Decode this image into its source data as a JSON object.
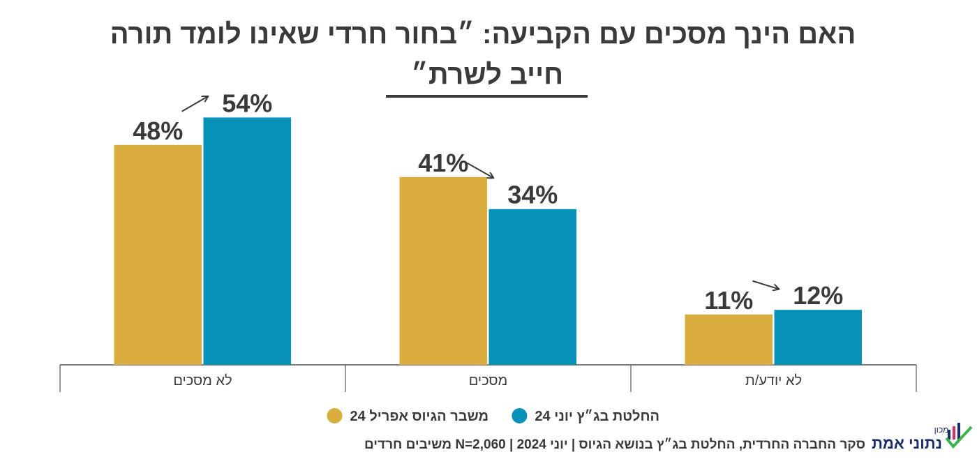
{
  "chart_data": {
    "type": "bar",
    "title": [
      "האם הינך מסכים עם הקביעה: ״בחור חרדי שאינו לומד תורה",
      "חייב לשרת״"
    ],
    "categories": [
      "לא מסכים",
      "מסכים",
      "לא יודע/ת"
    ],
    "series": [
      {
        "name": "משבר הגיוס אפריל 24",
        "color": "#d9ae3e",
        "values": [
          48,
          41,
          11
        ],
        "value_labels": [
          "48%",
          "41%",
          "11%"
        ]
      },
      {
        "name": "החלטת בג״ץ יוני 24",
        "color": "#0591b8",
        "values": [
          54,
          34,
          12
        ],
        "value_labels": [
          "54%",
          "34%",
          "12%"
        ]
      }
    ],
    "ylim": [
      0,
      60
    ],
    "source": "סקר החברה החרדית, החלטת בג״ץ בנושא הגיוס | יוני 2024 | N=2,060 משיבים חרדים",
    "logo": {
      "small": "מכון",
      "name": "נתוני אמת"
    }
  }
}
